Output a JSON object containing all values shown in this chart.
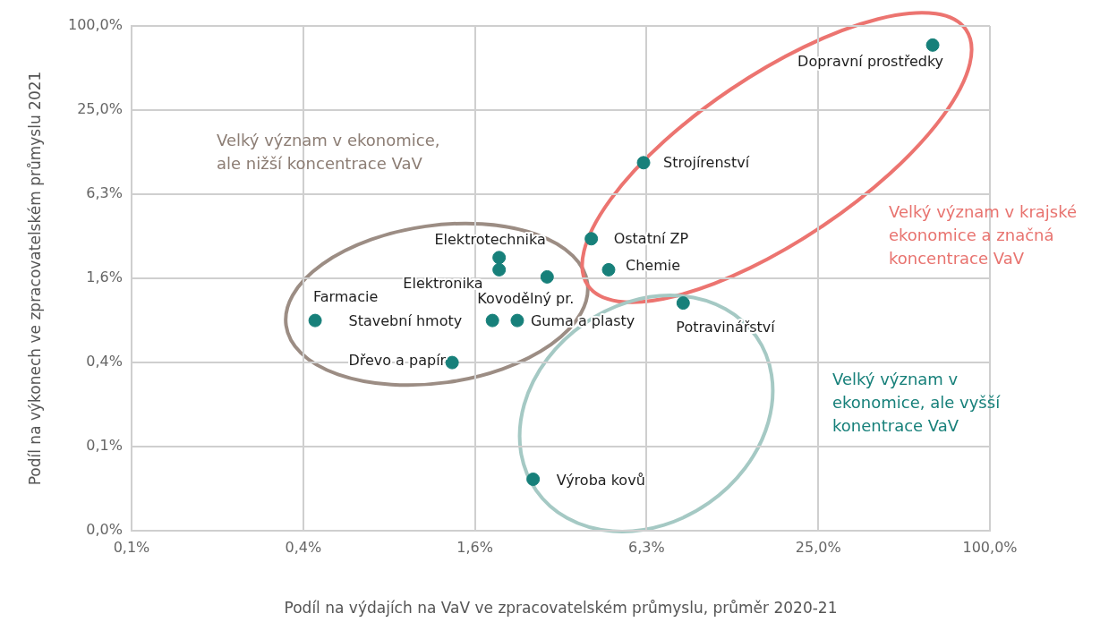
{
  "chart_data": {
    "type": "scatter",
    "xlabel": "Podíl na výdajích na VaV ve zpracovatelském průmyslu, průměr 2020-21",
    "ylabel": "Podíl na výkonech ve zpracovatelském průmyslu 2021",
    "log": "xy",
    "grid": true,
    "legend": false,
    "marker": "circle",
    "xlim": [
      0.09765625,
      100
    ],
    "xticks": [
      {
        "value": 0.09765625,
        "label": "0,1%"
      },
      {
        "value": 0.390625,
        "label": "0,4%"
      },
      {
        "value": 1.5625,
        "label": "1,6%"
      },
      {
        "value": 6.25,
        "label": "6,3%"
      },
      {
        "value": 25,
        "label": "25,0%"
      },
      {
        "value": 100,
        "label": "100,0%"
      }
    ],
    "ylim": [
      0.0244140625,
      100
    ],
    "yticks": [
      {
        "value": 0.0244140625,
        "label": "0,0%"
      },
      {
        "value": 0.09765625,
        "label": "0,1%"
      },
      {
        "value": 0.390625,
        "label": "0,4%"
      },
      {
        "value": 1.5625,
        "label": "1,6%"
      },
      {
        "value": 6.25,
        "label": "6,3%"
      },
      {
        "value": 25,
        "label": "25,0%"
      },
      {
        "value": 100,
        "label": "100,0%"
      }
    ],
    "series": [
      {
        "name": "Dopravní prostředky",
        "color": "#17807a",
        "x": [
          63
        ],
        "values": [
          73
        ]
      },
      {
        "name": "Strojírenství",
        "color": "#17807a",
        "x": [
          6.1
        ],
        "values": [
          10.5
        ]
      },
      {
        "name": "Ostatní ZP",
        "color": "#17807a",
        "x": [
          4.0
        ],
        "values": [
          3.0
        ]
      },
      {
        "name": "Chemie",
        "color": "#17807a",
        "x": [
          4.6
        ],
        "values": [
          1.8
        ]
      },
      {
        "name": "Potravinářství",
        "color": "#17807a",
        "x": [
          8.4
        ],
        "values": [
          1.04
        ]
      },
      {
        "name": "Elektrotechnika",
        "color": "#17807a",
        "x": [
          1.9
        ],
        "values": [
          2.2
        ]
      },
      {
        "name": "Elektronika",
        "color": "#17807a",
        "x": [
          1.9
        ],
        "values": [
          1.8
        ]
      },
      {
        "name": "Kovodělný pr.",
        "color": "#17807a",
        "x": [
          2.8
        ],
        "values": [
          1.6
        ]
      },
      {
        "name": "Farmacie",
        "color": "#17807a",
        "x": [
          0.43
        ],
        "values": [
          0.78
        ]
      },
      {
        "name": "Stavební hmoty",
        "color": "#17807a",
        "x": [
          1.8
        ],
        "values": [
          0.78
        ]
      },
      {
        "name": "Guma a plasty",
        "color": "#17807a",
        "x": [
          2.2
        ],
        "values": [
          0.78
        ]
      },
      {
        "name": "Dřevo a papír",
        "color": "#17807a",
        "x": [
          1.3
        ],
        "values": [
          0.39
        ]
      },
      {
        "name": "Výroba kovů",
        "color": "#17807a",
        "x": [
          2.5
        ],
        "values": [
          0.057
        ]
      }
    ],
    "annotations": [
      "Velký význam v ekonomice,\nale nižší koncentrace VaV",
      "Velký význam v krajské\nekonomice a značná\nkoncentrace VaV",
      "Velký význam v\nekonomice, ale vyšší\nkonentrace VaV"
    ]
  }
}
